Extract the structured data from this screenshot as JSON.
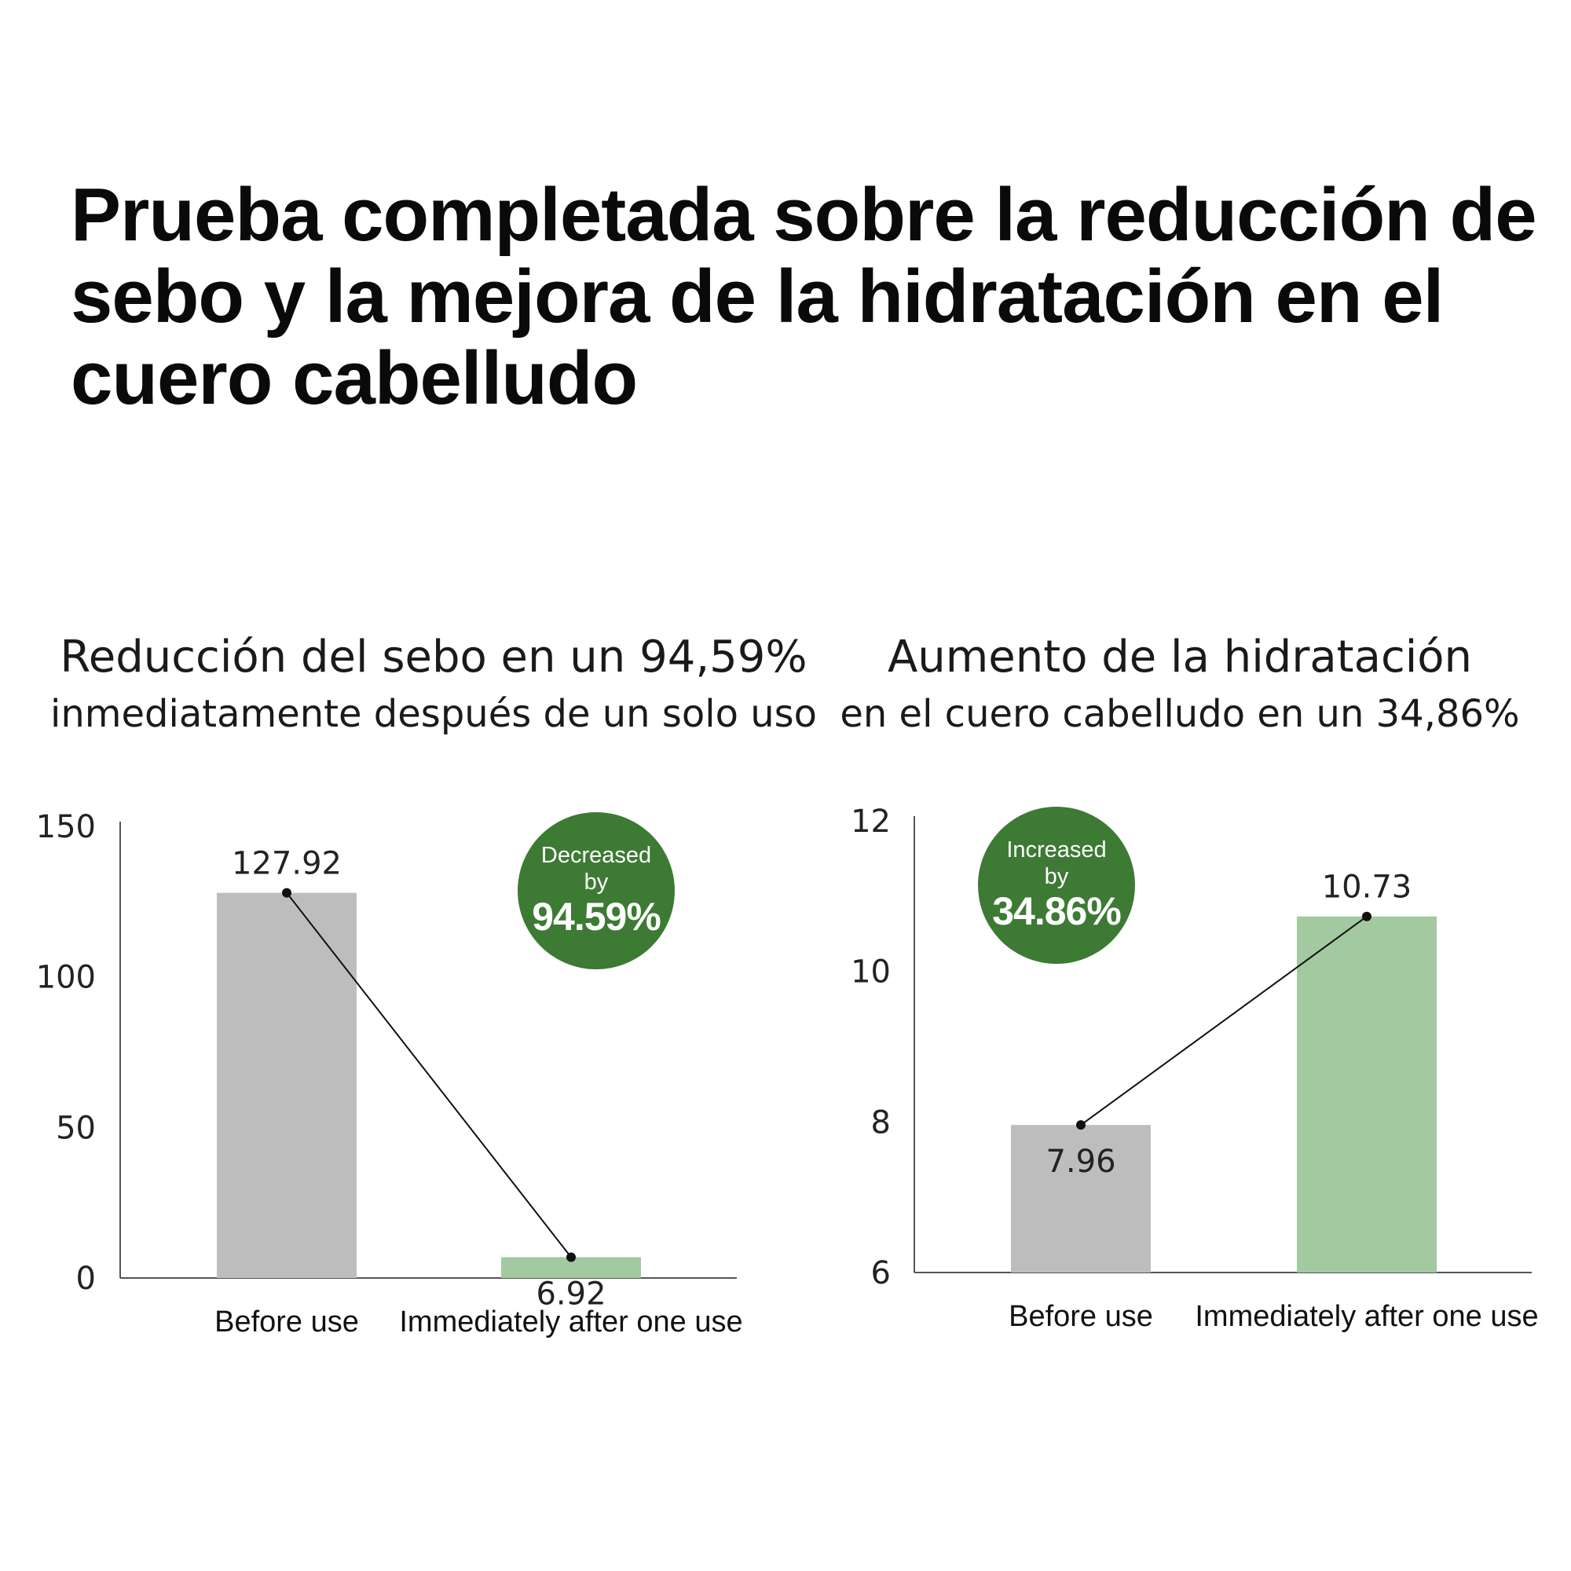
{
  "title_lines": [
    "Prueba completada sobre la reducción de",
    "sebo y la mejora de la hidratación en el",
    "cuero cabelludo"
  ],
  "colors": {
    "before_bar": "#bdbdbd",
    "after_bar": "#a2c99f",
    "badge": "#3d7a34",
    "axis": "#555555",
    "connector": "#111111"
  },
  "chart_data": [
    {
      "type": "bar",
      "heading_line1": "Reducción del sebo en un 94,59%",
      "heading_line2": "inmediatamente después de un solo uso",
      "categories": [
        "Before use",
        "Immediately after one use"
      ],
      "values": [
        127.92,
        6.92
      ],
      "value_labels": [
        "127.92",
        "6.92"
      ],
      "ylim": [
        0,
        150
      ],
      "yticks": [
        0,
        50,
        100,
        150
      ],
      "ytick_labels": [
        "0",
        "50",
        "100",
        "150"
      ],
      "bar_colors": [
        "#bdbdbd",
        "#a2c99f"
      ],
      "connector_line": true,
      "badge": {
        "line1": "Decreased",
        "line2": "by",
        "value": "94.59%",
        "placement": "top-right"
      },
      "grid": false
    },
    {
      "type": "bar",
      "heading_line1": "Aumento de la hidratación",
      "heading_line2": "en el cuero cabelludo en un 34,86%",
      "categories": [
        "Before use",
        "Immediately after one use"
      ],
      "values": [
        7.96,
        10.73
      ],
      "value_labels": [
        "7.96",
        "10.73"
      ],
      "ylim": [
        6,
        12
      ],
      "yticks": [
        6,
        8,
        10,
        12
      ],
      "ytick_labels": [
        "6",
        "8",
        "10",
        "12"
      ],
      "bar_colors": [
        "#bdbdbd",
        "#a2c99f"
      ],
      "connector_line": true,
      "badge": {
        "line1": "Increased",
        "line2": "by",
        "value": "34.86%",
        "placement": "top-left"
      },
      "grid": false
    }
  ]
}
